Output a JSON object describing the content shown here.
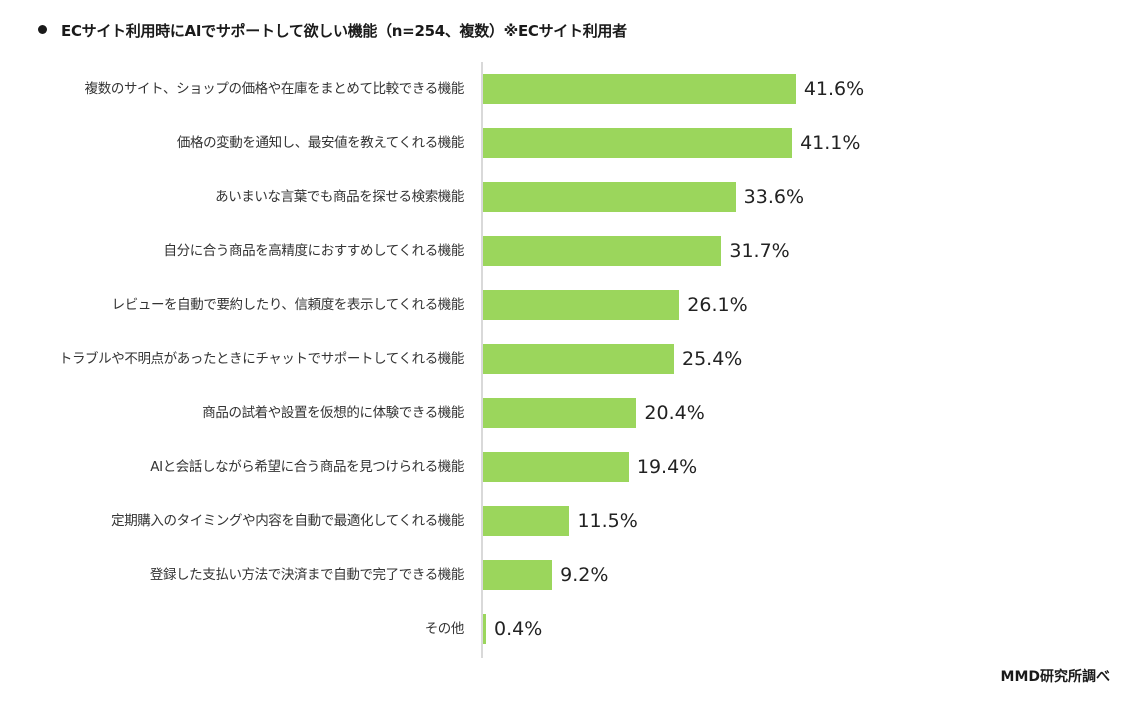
{
  "title": "ECサイト利用時にAIでサポートして欲しい機能（n=254、複数）※ECサイト利用者",
  "source": "MMD研究所調べ",
  "colors": {
    "bar": "#9bd65c",
    "axis": "#d9d9d9",
    "text": "#222222"
  },
  "chart_data": {
    "type": "bar",
    "orientation": "horizontal",
    "title": "ECサイト利用時にAIでサポートして欲しい機能（n=254、複数）※ECサイト利用者",
    "xlabel": "",
    "ylabel": "",
    "unit": "%",
    "xlim": [
      0,
      45
    ],
    "grid": false,
    "legend": null,
    "categories": [
      "複数のサイト、ショップの価格や在庫をまとめて比較できる機能",
      "価格の変動を通知し、最安値を教えてくれる機能",
      "あいまいな言葉でも商品を探せる検索機能",
      "自分に合う商品を高精度におすすめしてくれる機能",
      "レビューを自動で要約したり、信頼度を表示してくれる機能",
      "トラブルや不明点があったときにチャットでサポートしてくれる機能",
      "商品の試着や設置を仮想的に体験できる機能",
      "AIと会話しながら希望に合う商品を見つけられる機能",
      "定期購入のタイミングや内容を自動で最適化してくれる機能",
      "登録した支払い方法で決済まで自動で完了できる機能",
      "その他"
    ],
    "values": [
      41.6,
      41.1,
      33.6,
      31.7,
      26.1,
      25.4,
      20.4,
      19.4,
      11.5,
      9.2,
      0.4
    ],
    "value_labels": [
      "41.6%",
      "41.1%",
      "33.6%",
      "31.7%",
      "26.1%",
      "25.4%",
      "20.4%",
      "19.4%",
      "11.5%",
      "9.2%",
      "0.4%"
    ],
    "annotation": "MMD研究所調べ"
  }
}
